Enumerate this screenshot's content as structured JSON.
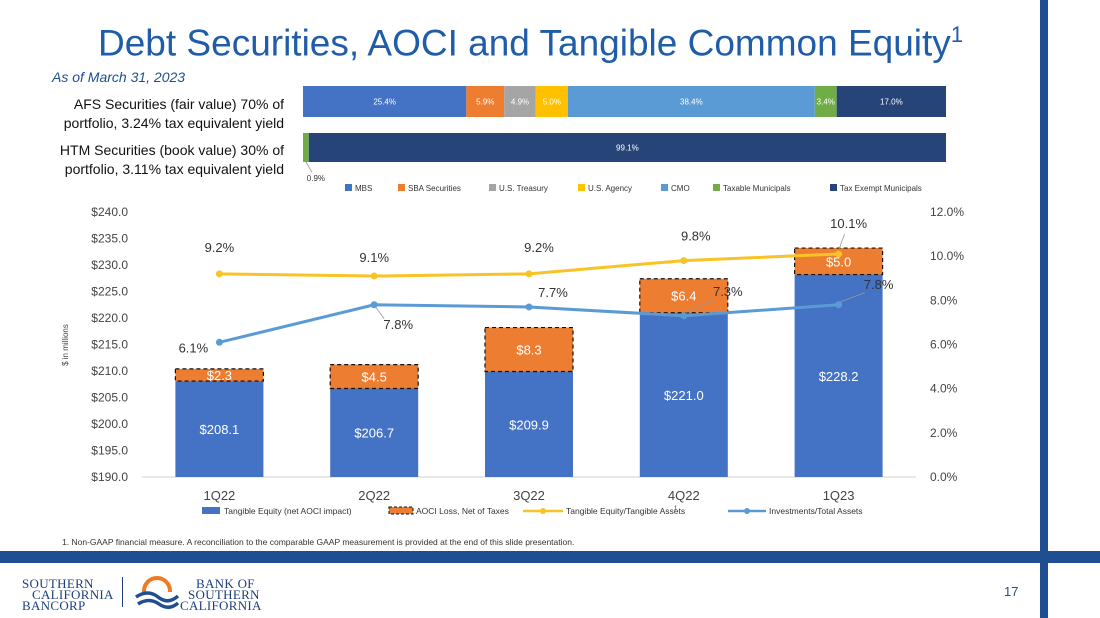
{
  "header": {
    "title": "Debt Securities, AOCI and Tangible Common Equity",
    "title_sup": "1",
    "as_of": "As of March 31, 2023"
  },
  "segments": {
    "afs_label": "AFS Securities (fair value) 70% of portfolio, 3.24% tax equivalent yield",
    "htm_label": "HTM Securities (book value) 30% of portfolio, 3.11% tax equivalent yield"
  },
  "colors": {
    "MBS": "#4472c4",
    "SBA": "#ed7d31",
    "Treasury": "#a5a5a5",
    "Agency": "#ffc000",
    "CMO": "#5b9bd5",
    "TaxableMuni": "#70ad47",
    "TaxExemptMuni": "#264478",
    "tangible_equity": "#4472c4",
    "aoci": "#ed7d31",
    "te_ratio_line": "#f7c325",
    "inv_line": "#5b9bd5"
  },
  "chart_data": [
    {
      "type": "bar",
      "stacked": true,
      "orientation": "horizontal",
      "categories": [
        "AFS",
        "HTM"
      ],
      "series": [
        {
          "name": "MBS",
          "values": [
            25.4,
            0
          ]
        },
        {
          "name": "SBA Securities",
          "values": [
            5.9,
            0
          ]
        },
        {
          "name": "U.S. Treasury",
          "values": [
            4.9,
            0
          ]
        },
        {
          "name": "U.S. Agency",
          "values": [
            5.0,
            0
          ]
        },
        {
          "name": "CMO",
          "values": [
            38.4,
            0
          ]
        },
        {
          "name": "Taxable Municipals",
          "values": [
            3.4,
            0.9
          ]
        },
        {
          "name": "Tax Exempt Municipals",
          "values": [
            17.0,
            99.1
          ]
        }
      ],
      "labels_afs": [
        "25.4%",
        "5.9%",
        "4.9%",
        "5.0%",
        "38.4%",
        "3.4%",
        "17.0%"
      ],
      "labels_htm": [
        "0.9%",
        "99.1%"
      ],
      "legend": [
        "MBS",
        "SBA Securities",
        "U.S. Treasury",
        "U.S. Agency",
        "CMO",
        "Taxable Municipals",
        "Tax Exempt Municipals"
      ]
    },
    {
      "type": "bar",
      "stacked": true,
      "categories": [
        "1Q22",
        "2Q22",
        "3Q22",
        "4Q22",
        "1Q23"
      ],
      "ylabel": "$ in millions",
      "ylim": [
        190,
        240
      ],
      "yticks": [
        "$190.0",
        "$195.0",
        "$200.0",
        "$205.0",
        "$210.0",
        "$215.0",
        "$220.0",
        "$225.0",
        "$230.0",
        "$235.0",
        "$240.0"
      ],
      "y2lim": [
        0,
        12
      ],
      "y2ticks": [
        "0.0%",
        "2.0%",
        "4.0%",
        "6.0%",
        "8.0%",
        "10.0%",
        "12.0%"
      ],
      "series": [
        {
          "name": "Tangible Equity (net AOCI impact)",
          "type": "bar",
          "values": [
            208.1,
            206.7,
            209.9,
            221.0,
            228.2
          ],
          "labels": [
            "$208.1",
            "$206.7",
            "$209.9",
            "$221.0",
            "$228.2"
          ]
        },
        {
          "name": "AOCI Loss, Net of Taxes",
          "type": "bar",
          "values": [
            2.3,
            4.5,
            8.3,
            6.4,
            5.0
          ],
          "labels": [
            "$2.3",
            "$4.5",
            "$8.3",
            "$6.4",
            "$5.0"
          ]
        },
        {
          "name": "Tangible Equity/Tangible Assets",
          "type": "line",
          "axis": "y2",
          "values": [
            9.2,
            9.1,
            9.2,
            9.8,
            10.1
          ],
          "labels": [
            "9.2%",
            "9.1%",
            "9.2%",
            "9.8%",
            "10.1%"
          ]
        },
        {
          "name": "Investments/Total Assets",
          "type": "line",
          "axis": "y2",
          "values": [
            6.1,
            7.8,
            7.7,
            7.3,
            7.8
          ],
          "labels": [
            "6.1%",
            "7.8%",
            "7.7%",
            "7.3%",
            "7.8%"
          ]
        }
      ],
      "legend": [
        "Tangible Equity (net AOCI impact)",
        "AOCI Loss, Net of Taxes",
        "Tangible Equity/Tangible Assets",
        "Investments/Total Assets"
      ],
      "legend_sup": "1"
    }
  ],
  "footnote": "1.  Non-GAAP financial measure. A reconciliation to the comparable GAAP measurement is provided at the end of this slide presentation.",
  "page_number": "17",
  "logos": {
    "bancorp": [
      "SOUTHERN",
      "CALIFORNIA",
      "BANCORP"
    ],
    "bank": [
      "BANK OF",
      "SOUTHERN",
      "CALIFORNIA"
    ]
  }
}
